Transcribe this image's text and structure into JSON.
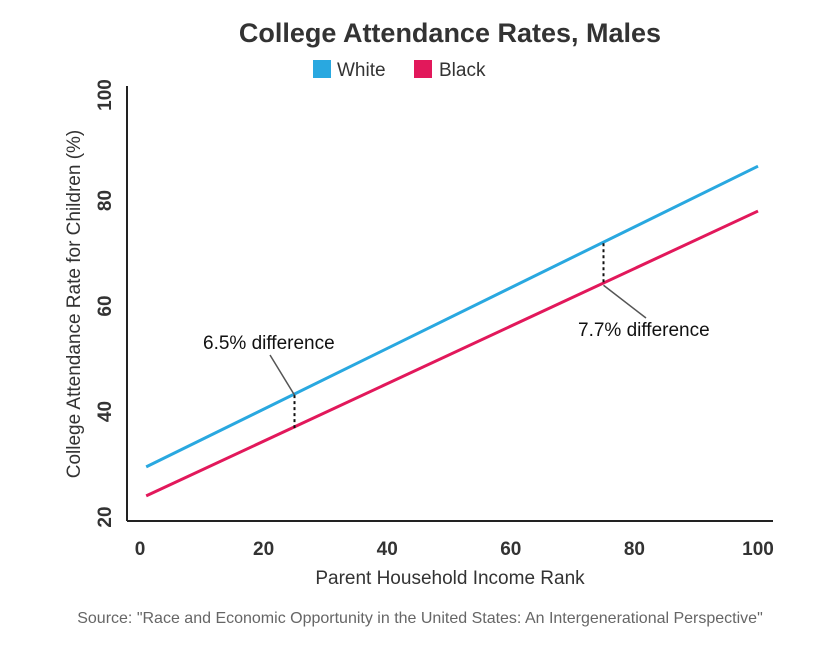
{
  "chart_data": {
    "type": "line",
    "title": "College Attendance Rates, Males",
    "xlabel": "Parent Household Income Rank",
    "ylabel": "College Attendance Rate for Children (%)",
    "xlim": [
      0,
      100
    ],
    "ylim": [
      20,
      100
    ],
    "x_ticks": [
      "0",
      "20",
      "40",
      "60",
      "80",
      "100"
    ],
    "y_ticks": [
      "20",
      "40",
      "60",
      "80",
      "100"
    ],
    "legend_position": "top",
    "grid": false,
    "series": [
      {
        "name": "White",
        "color": "#29A8E0",
        "x": [
          1,
          100
        ],
        "values": [
          29.5,
          86.5
        ]
      },
      {
        "name": "Black",
        "color": "#E2185B",
        "x": [
          1,
          100
        ],
        "values": [
          24,
          78
        ]
      }
    ],
    "annotations": [
      {
        "text": "6.5% difference",
        "x": 25,
        "y_top": 43.1,
        "y_bottom": 36.6
      },
      {
        "text": "7.7% difference",
        "x": 75,
        "y_top": 71.9,
        "y_bottom": 64.2
      }
    ],
    "source": "Source: \"Race and Economic Opportunity in the United States: An Intergenerational Perspective\""
  }
}
